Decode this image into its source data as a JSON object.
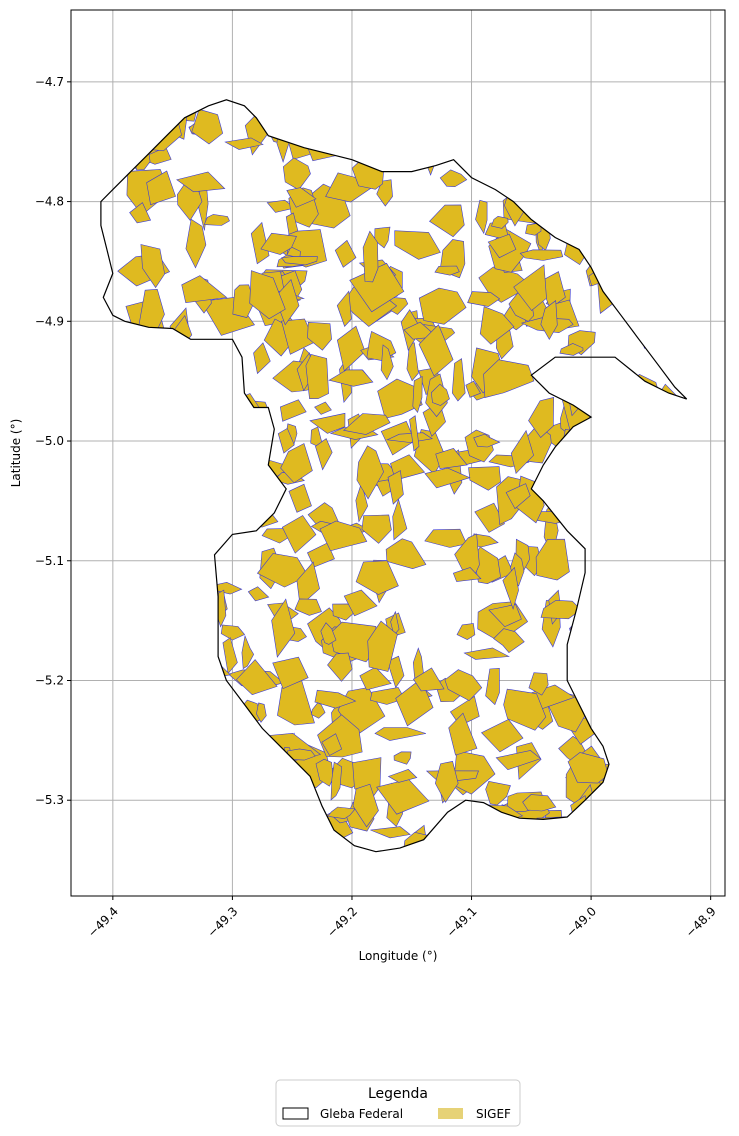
{
  "chart_data": {
    "type": "map",
    "title": "",
    "xlabel": "Longitude (°)",
    "ylabel": "Latitude (°)",
    "xlim": [
      -49.435,
      -48.888
    ],
    "ylim": [
      -5.38,
      -4.64
    ],
    "xticks": [
      -49.4,
      -49.3,
      -49.2,
      -49.1,
      -49.0,
      -48.9
    ],
    "xtick_labels": [
      "−49.4",
      "−49.3",
      "−49.2",
      "−49.1",
      "−49.0",
      "−48.9"
    ],
    "yticks": [
      -4.7,
      -4.8,
      -4.9,
      -5.0,
      -5.1,
      -5.2,
      -5.3
    ],
    "ytick_labels": [
      "−4.7",
      "−4.8",
      "−4.9",
      "−5.0",
      "−5.1",
      "−5.2",
      "−5.3"
    ],
    "grid": true,
    "legend": {
      "title": "Legenda",
      "placement": "bottom-center",
      "entries": [
        {
          "label": "Gleba Federal",
          "fill": "#ffffff",
          "edge": "#000000"
        },
        {
          "label": "SIGEF",
          "fill": "#e6d277",
          "edge": "#e6d277"
        }
      ]
    },
    "layers": [
      {
        "name": "Gleba Federal",
        "fill": "none",
        "edge": "#000000",
        "boundary": [
          [
            -49.4,
            -4.895
          ],
          [
            -49.39,
            -4.9
          ],
          [
            -49.37,
            -4.905
          ],
          [
            -49.35,
            -4.906
          ],
          [
            -49.335,
            -4.915
          ],
          [
            -49.3,
            -4.915
          ],
          [
            -49.292,
            -4.93
          ],
          [
            -49.29,
            -4.96
          ],
          [
            -49.282,
            -4.972
          ],
          [
            -49.27,
            -4.972
          ],
          [
            -49.265,
            -4.99
          ],
          [
            -49.27,
            -5.02
          ],
          [
            -49.255,
            -5.04
          ],
          [
            -49.265,
            -5.06
          ],
          [
            -49.28,
            -5.075
          ],
          [
            -49.3,
            -5.078
          ],
          [
            -49.315,
            -5.095
          ],
          [
            -49.312,
            -5.13
          ],
          [
            -49.312,
            -5.18
          ],
          [
            -49.305,
            -5.2
          ],
          [
            -49.29,
            -5.22
          ],
          [
            -49.275,
            -5.24
          ],
          [
            -49.255,
            -5.26
          ],
          [
            -49.235,
            -5.28
          ],
          [
            -49.225,
            -5.305
          ],
          [
            -49.215,
            -5.325
          ],
          [
            -49.198,
            -5.338
          ],
          [
            -49.18,
            -5.343
          ],
          [
            -49.16,
            -5.34
          ],
          [
            -49.14,
            -5.333
          ],
          [
            -49.12,
            -5.31
          ],
          [
            -49.105,
            -5.3
          ],
          [
            -49.09,
            -5.302
          ],
          [
            -49.075,
            -5.31
          ],
          [
            -49.06,
            -5.315
          ],
          [
            -49.04,
            -5.316
          ],
          [
            -49.02,
            -5.314
          ],
          [
            -49.005,
            -5.3
          ],
          [
            -48.99,
            -5.285
          ],
          [
            -48.985,
            -5.27
          ],
          [
            -48.99,
            -5.255
          ],
          [
            -49.0,
            -5.24
          ],
          [
            -49.01,
            -5.22
          ],
          [
            -49.02,
            -5.2
          ],
          [
            -49.02,
            -5.17
          ],
          [
            -49.012,
            -5.14
          ],
          [
            -49.005,
            -5.11
          ],
          [
            -49.005,
            -5.09
          ],
          [
            -49.02,
            -5.075
          ],
          [
            -49.04,
            -5.05
          ],
          [
            -49.05,
            -5.04
          ],
          [
            -49.04,
            -5.02
          ],
          [
            -49.03,
            -5.005
          ],
          [
            -49.015,
            -4.988
          ],
          [
            -49.0,
            -4.98
          ],
          [
            -49.015,
            -4.97
          ],
          [
            -49.035,
            -4.96
          ],
          [
            -49.05,
            -4.945
          ],
          [
            -49.03,
            -4.93
          ],
          [
            -49.0,
            -4.93
          ],
          [
            -48.98,
            -4.93
          ],
          [
            -48.955,
            -4.95
          ],
          [
            -48.935,
            -4.96
          ],
          [
            -48.92,
            -4.965
          ],
          [
            -48.93,
            -4.955
          ],
          [
            -48.945,
            -4.935
          ],
          [
            -48.96,
            -4.915
          ],
          [
            -48.975,
            -4.895
          ],
          [
            -48.99,
            -4.875
          ],
          [
            -49.0,
            -4.855
          ],
          [
            -49.01,
            -4.84
          ],
          [
            -49.03,
            -4.83
          ],
          [
            -49.05,
            -4.815
          ],
          [
            -49.065,
            -4.8
          ],
          [
            -49.08,
            -4.79
          ],
          [
            -49.1,
            -4.78
          ],
          [
            -49.115,
            -4.765
          ],
          [
            -49.13,
            -4.77
          ],
          [
            -49.15,
            -4.775
          ],
          [
            -49.175,
            -4.775
          ],
          [
            -49.2,
            -4.765
          ],
          [
            -49.22,
            -4.76
          ],
          [
            -49.24,
            -4.755
          ],
          [
            -49.255,
            -4.75
          ],
          [
            -49.27,
            -4.745
          ],
          [
            -49.28,
            -4.73
          ],
          [
            -49.29,
            -4.72
          ],
          [
            -49.305,
            -4.715
          ],
          [
            -49.32,
            -4.72
          ],
          [
            -49.34,
            -4.73
          ],
          [
            -49.355,
            -4.745
          ],
          [
            -49.37,
            -4.76
          ],
          [
            -49.385,
            -4.775
          ],
          [
            -49.4,
            -4.79
          ],
          [
            -49.41,
            -4.8
          ],
          [
            -49.41,
            -4.82
          ],
          [
            -49.405,
            -4.84
          ],
          [
            -49.4,
            -4.86
          ],
          [
            -49.408,
            -4.88
          ]
        ]
      },
      {
        "name": "SIGEF",
        "fill": "#dfba20",
        "edge": "#3b3bd6",
        "note_count_estimate": "many hundreds of parcels"
      }
    ]
  }
}
